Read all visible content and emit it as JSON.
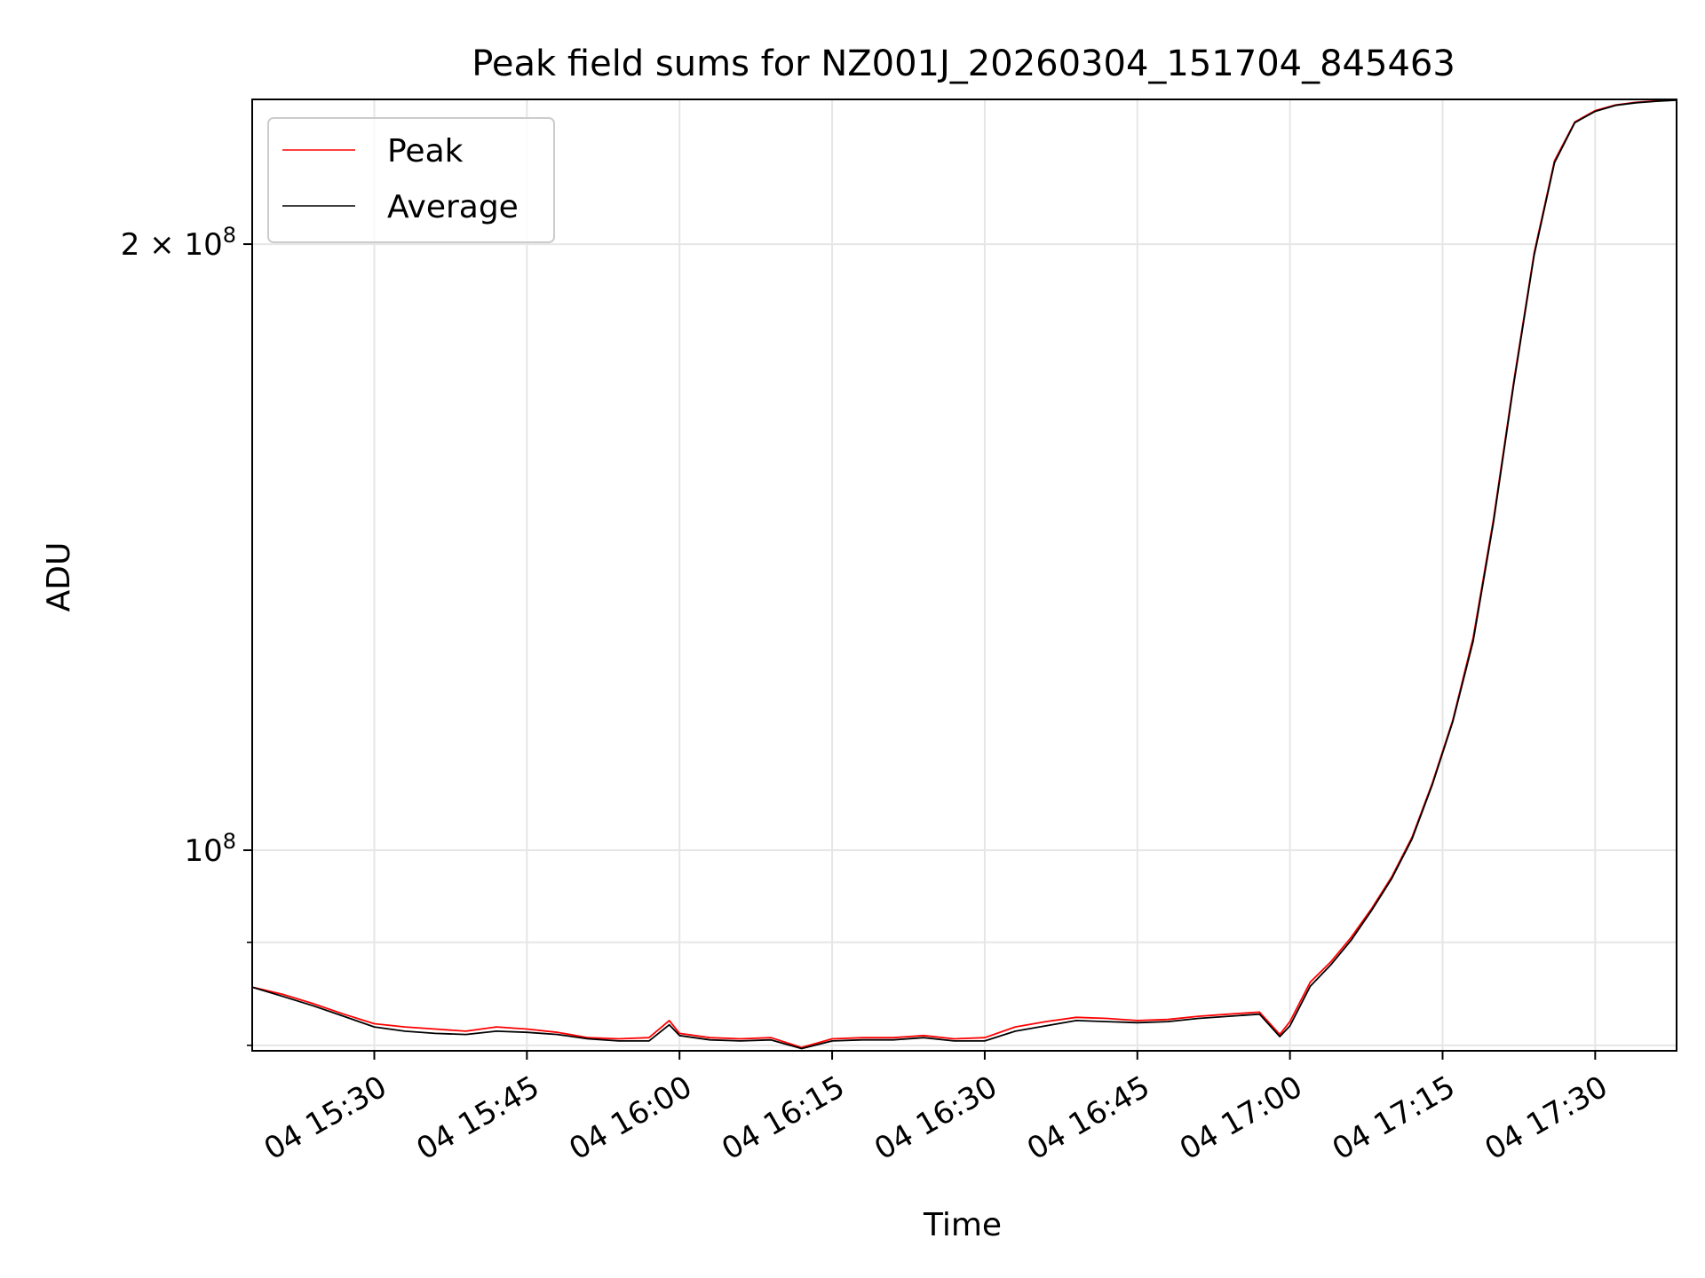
{
  "chart_data": {
    "type": "line",
    "title": "Peak field sums for NZ001J_20260304_151704_845463",
    "xlabel": "Time",
    "ylabel": "ADU",
    "y_scale": "log",
    "xlim_minutes": [
      15.0,
      155.0
    ],
    "ylim": [
      79500000,
      236000000
    ],
    "x_ticks": [
      {
        "minute": 27,
        "label": "04 15:30"
      },
      {
        "minute": 42,
        "label": "04 15:45"
      },
      {
        "minute": 57,
        "label": "04 16:00"
      },
      {
        "minute": 72,
        "label": "04 16:15"
      },
      {
        "minute": 87,
        "label": "04 16:30"
      },
      {
        "minute": 102,
        "label": "04 16:45"
      },
      {
        "minute": 117,
        "label": "04 17:00"
      },
      {
        "minute": 132,
        "label": "04 17:15"
      },
      {
        "minute": 147,
        "label": "04 17:30"
      }
    ],
    "y_major_ticks": [
      {
        "value": 100000000,
        "base": "10",
        "exp": "8"
      },
      {
        "value": 200000000,
        "base": "2 × 10",
        "exp": "8"
      }
    ],
    "y_minor_ticks": [
      80000000,
      90000000
    ],
    "grid": true,
    "legend_position": "top-left",
    "x_minutes_after_1500": [
      15,
      18,
      21,
      24,
      27,
      30,
      33,
      36,
      39,
      42,
      45,
      48,
      51,
      54,
      56,
      57,
      60,
      63,
      66,
      69,
      72,
      75,
      78,
      81,
      84,
      87,
      90,
      93,
      96,
      99,
      102,
      105,
      108,
      111,
      114,
      116,
      117,
      119,
      121,
      123,
      125,
      127,
      129,
      131,
      133,
      135,
      137,
      139,
      141,
      143,
      145,
      147,
      149,
      151,
      153,
      155
    ],
    "series": [
      {
        "name": "Peak",
        "color": "#ff0000",
        "values": [
          85500000,
          84800000,
          83900000,
          82900000,
          82000000,
          81700000,
          81500000,
          81300000,
          81700000,
          81500000,
          81200000,
          80700000,
          80600000,
          80700000,
          82300000,
          81100000,
          80700000,
          80600000,
          80700000,
          79800000,
          80600000,
          80700000,
          80700000,
          80900000,
          80600000,
          80700000,
          81700000,
          82200000,
          82600000,
          82500000,
          82300000,
          82400000,
          82700000,
          82900000,
          83100000,
          81000000,
          82200000,
          86000000,
          88000000,
          90500000,
          93500000,
          97000000,
          101500000,
          108000000,
          116000000,
          127500000,
          146000000,
          171000000,
          198000000,
          220000000,
          230000000,
          233000000,
          234500000,
          235200000,
          235600000,
          235800000
        ]
      },
      {
        "name": "Average",
        "color": "#000000",
        "values": [
          85500000,
          84600000,
          83700000,
          82700000,
          81700000,
          81300000,
          81100000,
          81000000,
          81300000,
          81200000,
          81000000,
          80600000,
          80400000,
          80400000,
          81900000,
          80900000,
          80500000,
          80400000,
          80500000,
          79700000,
          80400000,
          80500000,
          80500000,
          80700000,
          80400000,
          80400000,
          81300000,
          81800000,
          82300000,
          82200000,
          82100000,
          82200000,
          82500000,
          82700000,
          82900000,
          80800000,
          81800000,
          85600000,
          87700000,
          90200000,
          93300000,
          96800000,
          101300000,
          107800000,
          115800000,
          127000000,
          145500000,
          170500000,
          197500000,
          219500000,
          229800000,
          232800000,
          234400000,
          235100000,
          235500000,
          235800000
        ]
      }
    ]
  }
}
